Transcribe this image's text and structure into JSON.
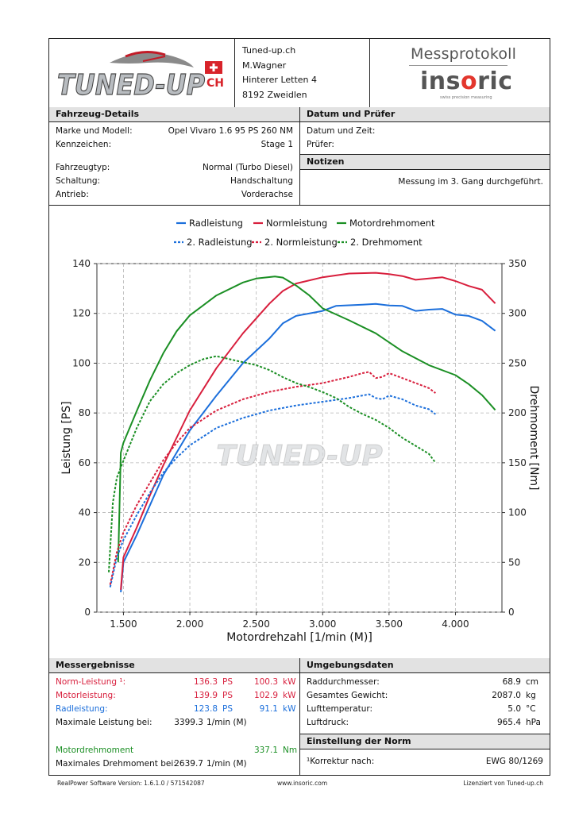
{
  "header": {
    "company": "Tuned-up.ch",
    "person": "M.Wagner",
    "street": "Hinterer Letten 4",
    "city": "8192 Zweidlen",
    "logo_text": "TUNED-UP",
    "logo_suffix": "CH",
    "protocol_title": "Messprotokoll",
    "brand": "insoric",
    "brand_tagline": "swiss precision measuring"
  },
  "vehicle": {
    "title": "Fahrzeug-Details",
    "fields": [
      {
        "label": "Marke und Modell:",
        "value": "Opel Vivaro 1.6 95 PS 260 NM"
      },
      {
        "label": "Kennzeichen:",
        "value": "Stage 1"
      },
      {
        "label": "Fahrzeugtyp:",
        "value": "Normal (Turbo Diesel)"
      },
      {
        "label": "Schaltung:",
        "value": "Handschaltung"
      },
      {
        "label": "Antrieb:",
        "value": "Vorderachse"
      }
    ]
  },
  "tester": {
    "title": "Datum und Prüfer",
    "date_label": "Datum und Zeit:",
    "date_value": "",
    "tester_label": "Prüfer:",
    "tester_value": ""
  },
  "notes": {
    "title": "Notizen",
    "text": "Messung im 3. Gang durchgeführt."
  },
  "results": {
    "title": "Messergebnisse",
    "norm": {
      "label": "Norm-Leistung ¹:",
      "ps": "136.3",
      "ps_unit": "PS",
      "kw": "100.3",
      "kw_unit": "kW"
    },
    "motor": {
      "label": "Motorleistung:",
      "ps": "139.9",
      "ps_unit": "PS",
      "kw": "102.9",
      "kw_unit": "kW"
    },
    "wheel": {
      "label": "Radleistung:",
      "ps": "123.8",
      "ps_unit": "PS",
      "kw": "91.1",
      "kw_unit": "kW"
    },
    "max_power": {
      "label": "Maximale Leistung bei:",
      "value": "3399.3",
      "unit": "1/min (M)"
    },
    "torque": {
      "label": "Motordrehmoment",
      "value": "337.1",
      "unit": "Nm"
    },
    "max_torque": {
      "label": "Maximales Drehmoment bei:",
      "value": "2639.7",
      "unit": "1/min (M)"
    }
  },
  "environment": {
    "title": "Umgebungsdaten",
    "rows": [
      {
        "label": "Raddurchmesser:",
        "value": "68.9",
        "unit": "cm"
      },
      {
        "label": "Gesamtes Gewicht:",
        "value": "2087.0",
        "unit": "kg"
      },
      {
        "label": "Lufttemperatur:",
        "value": "5.0",
        "unit": "°C"
      },
      {
        "label": "Luftdruck:",
        "value": "965.4",
        "unit": "hPa"
      }
    ]
  },
  "norm": {
    "title": "Einstellung der Norm",
    "label": "¹Korrektur nach:",
    "value": "EWG 80/1269"
  },
  "footer": {
    "version": "RealPower Software Version: 1.6.1.0 / 571542087",
    "site": "www.insoric.com",
    "license": "Lizenziert von Tuned-up.ch"
  },
  "colors": {
    "blue": "#1c6fdb",
    "red": "#d81f3d",
    "green": "#1b8f24"
  },
  "chart_data": {
    "type": "line",
    "xlabel": "Motordrehzahl [1/min (M)]",
    "ylabel": "Leistung [PS]",
    "y2label": "Drehmoment [Nm]",
    "xlim": [
      1300,
      4350
    ],
    "ylim": [
      0,
      140
    ],
    "y2lim": [
      0,
      350
    ],
    "x_ticks": [
      1500,
      2000,
      2500,
      3000,
      3500,
      4000
    ],
    "x_tick_labels": [
      "1.500",
      "2.000",
      "2.500",
      "3.000",
      "3.500",
      "4.000"
    ],
    "y_ticks": [
      0,
      20,
      40,
      60,
      80,
      100,
      120,
      140
    ],
    "y2_ticks": [
      0,
      50,
      100,
      150,
      200,
      250,
      300,
      350
    ],
    "grid": true,
    "legend_position": "top",
    "series": [
      {
        "name": "Radleistung",
        "axis": "left",
        "style": "solid",
        "color": "#1c6fdb",
        "points": [
          [
            1480,
            8
          ],
          [
            1500,
            20
          ],
          [
            1600,
            31
          ],
          [
            1700,
            43
          ],
          [
            1800,
            55
          ],
          [
            1900,
            64
          ],
          [
            2000,
            73
          ],
          [
            2200,
            87
          ],
          [
            2400,
            100
          ],
          [
            2600,
            110
          ],
          [
            2700,
            116
          ],
          [
            2800,
            119
          ],
          [
            3000,
            121
          ],
          [
            3100,
            123
          ],
          [
            3300,
            123.5
          ],
          [
            3400,
            123.8
          ],
          [
            3500,
            123.2
          ],
          [
            3600,
            123
          ],
          [
            3700,
            121
          ],
          [
            3800,
            121.5
          ],
          [
            3900,
            121.8
          ],
          [
            4000,
            119.5
          ],
          [
            4100,
            119
          ],
          [
            4200,
            117
          ],
          [
            4300,
            113
          ]
        ]
      },
      {
        "name": "Normleistung",
        "axis": "left",
        "style": "solid",
        "color": "#d81f3d",
        "points": [
          [
            1480,
            9
          ],
          [
            1500,
            22
          ],
          [
            1600,
            34
          ],
          [
            1700,
            47
          ],
          [
            1800,
            59
          ],
          [
            1900,
            70
          ],
          [
            2000,
            81
          ],
          [
            2200,
            98
          ],
          [
            2400,
            112
          ],
          [
            2600,
            124
          ],
          [
            2700,
            129
          ],
          [
            2800,
            132
          ],
          [
            3000,
            134.5
          ],
          [
            3200,
            136
          ],
          [
            3400,
            136.3
          ],
          [
            3500,
            135.8
          ],
          [
            3600,
            135
          ],
          [
            3700,
            133.5
          ],
          [
            3800,
            134
          ],
          [
            3900,
            134.5
          ],
          [
            4000,
            133
          ],
          [
            4100,
            131
          ],
          [
            4200,
            129.5
          ],
          [
            4300,
            124
          ]
        ]
      },
      {
        "name": "Motordrehmoment",
        "axis": "right",
        "style": "solid",
        "color": "#1b8f24",
        "points": [
          [
            1460,
            50
          ],
          [
            1480,
            160
          ],
          [
            1500,
            170
          ],
          [
            1600,
            202
          ],
          [
            1700,
            233
          ],
          [
            1800,
            260
          ],
          [
            1900,
            282
          ],
          [
            2000,
            298
          ],
          [
            2200,
            318
          ],
          [
            2400,
            331
          ],
          [
            2500,
            335
          ],
          [
            2640,
            337.1
          ],
          [
            2700,
            336
          ],
          [
            2800,
            328
          ],
          [
            2900,
            318
          ],
          [
            3000,
            305
          ],
          [
            3200,
            293
          ],
          [
            3400,
            280
          ],
          [
            3600,
            262
          ],
          [
            3800,
            248
          ],
          [
            4000,
            238
          ],
          [
            4100,
            229
          ],
          [
            4200,
            218
          ],
          [
            4300,
            203
          ]
        ]
      },
      {
        "name": "2. Radleistung",
        "axis": "left",
        "style": "dashed",
        "color": "#1c6fdb",
        "points": [
          [
            1400,
            10
          ],
          [
            1450,
            22
          ],
          [
            1500,
            29
          ],
          [
            1600,
            39
          ],
          [
            1700,
            48
          ],
          [
            1800,
            56
          ],
          [
            1900,
            62
          ],
          [
            2000,
            67
          ],
          [
            2200,
            74
          ],
          [
            2400,
            78
          ],
          [
            2600,
            81
          ],
          [
            2800,
            83
          ],
          [
            3000,
            84.5
          ],
          [
            3200,
            86
          ],
          [
            3350,
            87.5
          ],
          [
            3400,
            86
          ],
          [
            3450,
            85.5
          ],
          [
            3500,
            87
          ],
          [
            3600,
            85.5
          ],
          [
            3700,
            83
          ],
          [
            3800,
            81.5
          ],
          [
            3850,
            79.5
          ]
        ]
      },
      {
        "name": "2. Normleistung",
        "axis": "left",
        "style": "dashed",
        "color": "#d81f3d",
        "points": [
          [
            1400,
            11
          ],
          [
            1450,
            24
          ],
          [
            1500,
            32
          ],
          [
            1600,
            43
          ],
          [
            1700,
            52
          ],
          [
            1800,
            61
          ],
          [
            1900,
            68
          ],
          [
            2000,
            74
          ],
          [
            2200,
            81
          ],
          [
            2400,
            85.5
          ],
          [
            2600,
            88.5
          ],
          [
            2800,
            90.5
          ],
          [
            3000,
            92
          ],
          [
            3200,
            94.5
          ],
          [
            3300,
            96
          ],
          [
            3350,
            96.5
          ],
          [
            3400,
            94
          ],
          [
            3450,
            94.5
          ],
          [
            3500,
            96
          ],
          [
            3600,
            94
          ],
          [
            3700,
            92
          ],
          [
            3800,
            90
          ],
          [
            3850,
            88
          ]
        ]
      },
      {
        "name": "2. Drehmoment",
        "axis": "right",
        "style": "dashed",
        "color": "#1b8f24",
        "points": [
          [
            1390,
            40
          ],
          [
            1420,
            110
          ],
          [
            1450,
            135
          ],
          [
            1500,
            152
          ],
          [
            1600,
            185
          ],
          [
            1700,
            212
          ],
          [
            1800,
            229
          ],
          [
            1900,
            240
          ],
          [
            2000,
            248
          ],
          [
            2100,
            254
          ],
          [
            2200,
            257
          ],
          [
            2300,
            254
          ],
          [
            2400,
            251
          ],
          [
            2500,
            248
          ],
          [
            2600,
            243
          ],
          [
            2700,
            236
          ],
          [
            2800,
            230
          ],
          [
            2900,
            226
          ],
          [
            3000,
            221
          ],
          [
            3100,
            215
          ],
          [
            3200,
            206
          ],
          [
            3300,
            199
          ],
          [
            3400,
            193
          ],
          [
            3500,
            185
          ],
          [
            3600,
            175
          ],
          [
            3700,
            167
          ],
          [
            3800,
            159
          ],
          [
            3850,
            150
          ]
        ]
      }
    ]
  }
}
